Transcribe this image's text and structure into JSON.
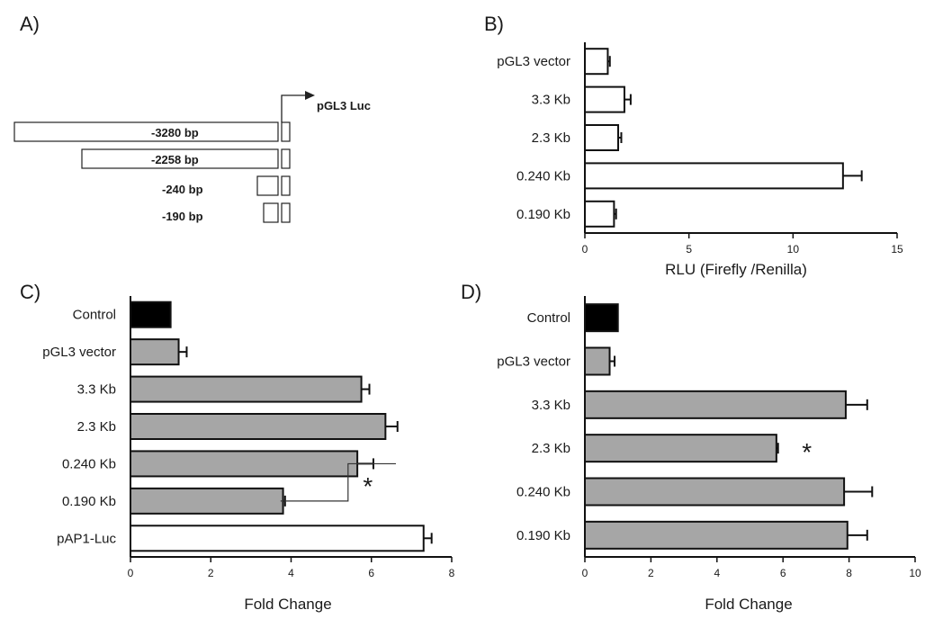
{
  "panels": {
    "a": {
      "letter": "A)"
    },
    "b": {
      "letter": "B)"
    },
    "c": {
      "letter": "C)"
    },
    "d": {
      "letter": "D)"
    }
  },
  "diagram": {
    "promoter_label": "pGL3 Luc",
    "fragments": [
      {
        "label": "-3280 bp",
        "length_bp": 3280
      },
      {
        "label": "-2258 bp",
        "length_bp": 2258
      },
      {
        "label": "-240 bp",
        "length_bp": 240
      },
      {
        "label": "-190 bp",
        "length_bp": 190
      }
    ]
  },
  "chart_data": [
    {
      "panel": "B",
      "type": "bar",
      "orientation": "horizontal",
      "categories": [
        "pGL3 vector",
        "3.3 Kb",
        "2.3 Kb",
        "0.240 Kb",
        "0.190 Kb"
      ],
      "values": [
        1.1,
        1.9,
        1.6,
        12.4,
        1.4
      ],
      "errors": [
        0.1,
        0.3,
        0.15,
        0.9,
        0.1
      ],
      "colors": [
        "#ffffff",
        "#ffffff",
        "#ffffff",
        "#ffffff",
        "#ffffff"
      ],
      "xlabel": "RLU  (Firefly /Renilla)",
      "xlim": [
        0,
        15
      ],
      "xticks": [
        0,
        5,
        10,
        15
      ],
      "annotations": []
    },
    {
      "panel": "C",
      "type": "bar",
      "orientation": "horizontal",
      "categories": [
        "Control",
        "pGL3 vector",
        "3.3 Kb",
        "2.3 Kb",
        "0.240 Kb",
        "0.190 Kb",
        "pAP1-Luc"
      ],
      "values": [
        1.0,
        1.2,
        5.75,
        6.35,
        5.65,
        3.8,
        7.3
      ],
      "errors": [
        0,
        0.2,
        0.2,
        0.3,
        0.4,
        0.05,
        0.2
      ],
      "colors": [
        "#000000",
        "#a6a6a6",
        "#a6a6a6",
        "#a6a6a6",
        "#a6a6a6",
        "#a6a6a6",
        "#ffffff"
      ],
      "xlabel": "Fold Change",
      "xlim": [
        0,
        8
      ],
      "xticks": [
        0,
        2,
        4,
        6,
        8
      ],
      "annotations": [
        {
          "text": "*",
          "between": [
            "0.240 Kb",
            "0.190 Kb"
          ]
        }
      ]
    },
    {
      "panel": "D",
      "type": "bar",
      "orientation": "horizontal",
      "categories": [
        "Control",
        "pGL3 vector",
        "3.3 Kb",
        "2.3 Kb",
        "0.240 Kb",
        "0.190 Kb"
      ],
      "values": [
        1.0,
        0.75,
        7.9,
        5.8,
        7.85,
        7.95
      ],
      "errors": [
        0,
        0.15,
        0.65,
        0.05,
        0.85,
        0.6
      ],
      "colors": [
        "#000000",
        "#a6a6a6",
        "#a6a6a6",
        "#a6a6a6",
        "#a6a6a6",
        "#a6a6a6"
      ],
      "xlabel": "Fold Change",
      "xlim": [
        0,
        10
      ],
      "xticks": [
        0,
        2,
        4,
        6,
        8,
        10
      ],
      "annotations": [
        {
          "text": "*",
          "on": "2.3 Kb"
        }
      ]
    }
  ]
}
